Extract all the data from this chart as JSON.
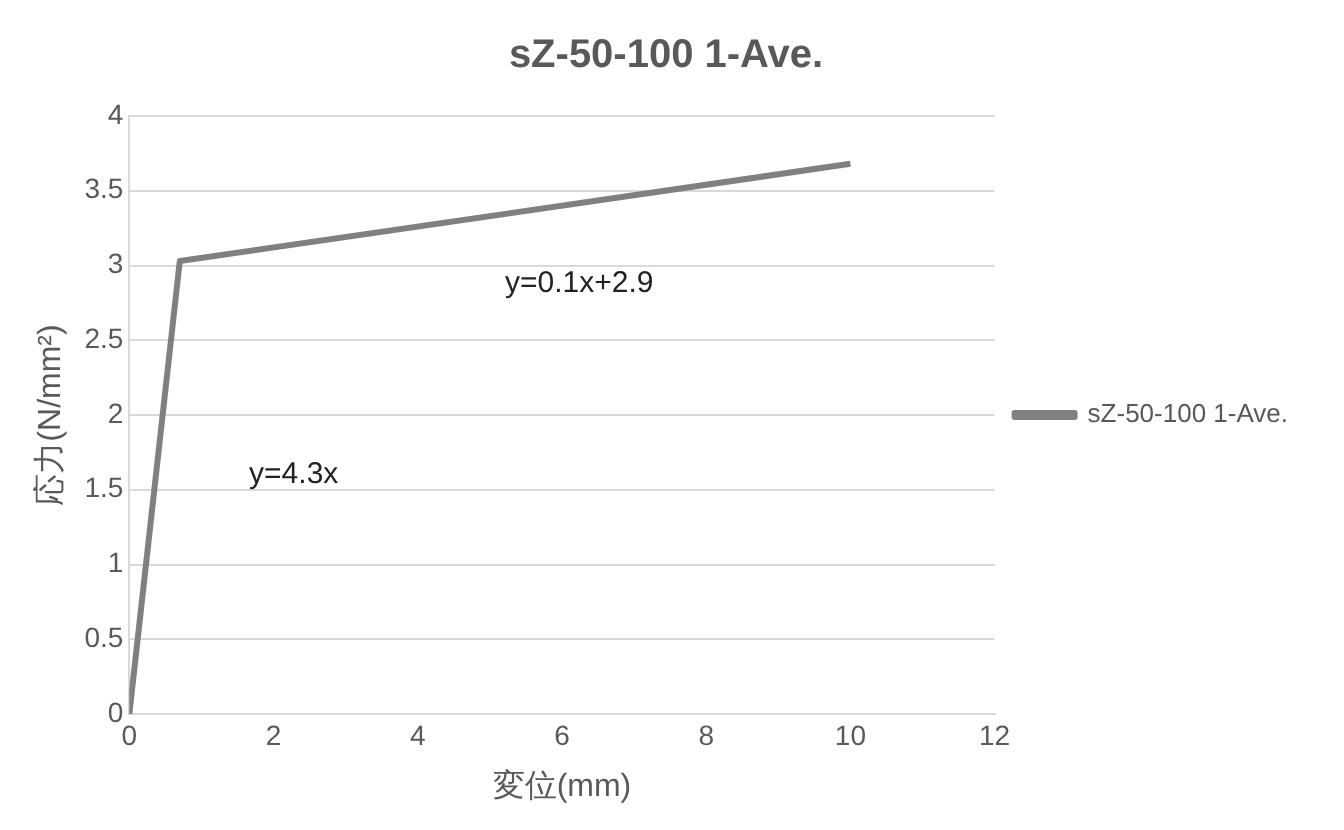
{
  "chart_data": {
    "type": "line",
    "title": "sZ-50-100 1-Ave.",
    "xlabel": "変位(mm)",
    "ylabel": "応力(N/mm²)",
    "series": [
      {
        "name": "sZ-50-100 1-Ave.",
        "color": "#808080",
        "x": [
          0,
          0.7,
          10
        ],
        "values": [
          0,
          3.03,
          3.68
        ]
      }
    ],
    "xlim": [
      0,
      12
    ],
    "xticks": [
      0,
      2,
      4,
      6,
      8,
      10,
      12
    ],
    "ylim": [
      0,
      4
    ],
    "yticks": [
      0,
      0.5,
      1,
      1.5,
      2,
      2.5,
      3,
      3.5,
      4
    ],
    "grid": "y",
    "legend": "right",
    "marker": "none",
    "line_style": "solid",
    "annotations": [
      "y=0.1x+2.9",
      "y=4.3x"
    ]
  }
}
